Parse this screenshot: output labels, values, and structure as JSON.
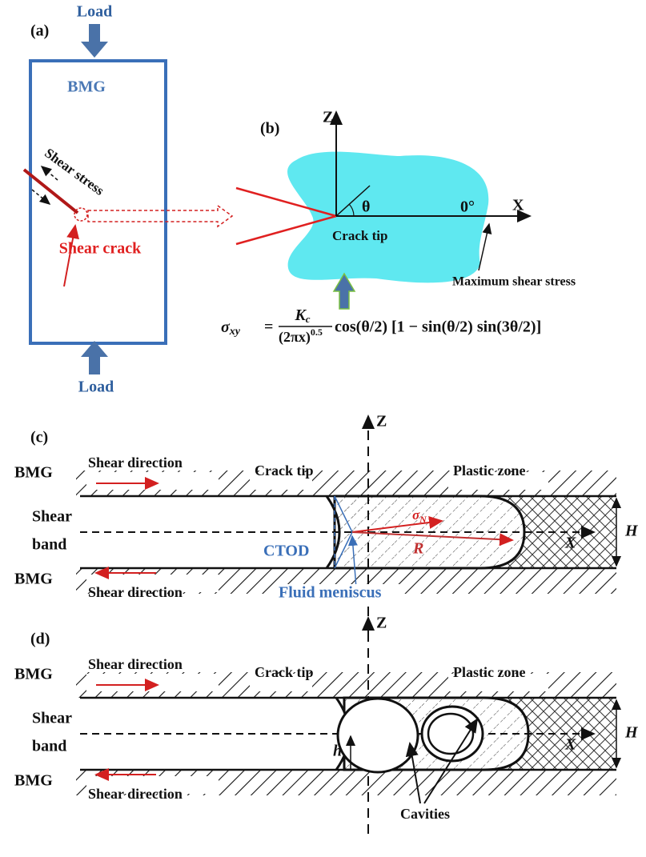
{
  "panel_a": {
    "label": "(a)",
    "load_top": "Load",
    "material": "BMG",
    "shear_stress": "Shear stress",
    "shear_crack": "Shear crack",
    "load_bottom": "Load"
  },
  "panel_b": {
    "label": "(b)",
    "z_axis": "Z",
    "x_axis": "X",
    "angle": "θ",
    "zero_angle": "0°",
    "crack_tip": "Crack tip",
    "max_stress": "Maximum shear stress",
    "equation": {
      "lhs": "σ",
      "lhs_sub": "xy",
      "equals": "=",
      "numerator": "K",
      "numerator_sub": "c",
      "denominator": "(2πx)",
      "denominator_exp": "0.5",
      "rhs": "cos(θ/2) [1 − sin(θ/2) sin(3θ/2)]"
    }
  },
  "panel_c": {
    "label": "(c)",
    "z_axis": "Z",
    "bmg_top": "BMG",
    "shear_dir_top": "Shear direction",
    "crack_tip": "Crack tip",
    "plastic_zone": "Plastic zone",
    "shear_band": [
      "Shear",
      "band"
    ],
    "ctod": "CTOD",
    "sigma": "σ",
    "sigma_sub": "N",
    "radius": "R",
    "x_axis": "X",
    "height": "H",
    "bmg_bottom": "BMG",
    "shear_dir_bottom": "Shear direction",
    "meniscus": "Fluid meniscus"
  },
  "panel_d": {
    "label": "(d)",
    "z_axis": "Z",
    "bmg_top": "BMG",
    "shear_dir_top": "Shear direction",
    "crack_tip": "Crack tip",
    "plastic_zone": "Plastic zone",
    "shear_band": [
      "Shear",
      "band"
    ],
    "gap": "h",
    "x_axis": "X",
    "height": "H",
    "bmg_bottom": "BMG",
    "shear_dir_bottom": "Shear direction",
    "cavities": "Cavities"
  }
}
